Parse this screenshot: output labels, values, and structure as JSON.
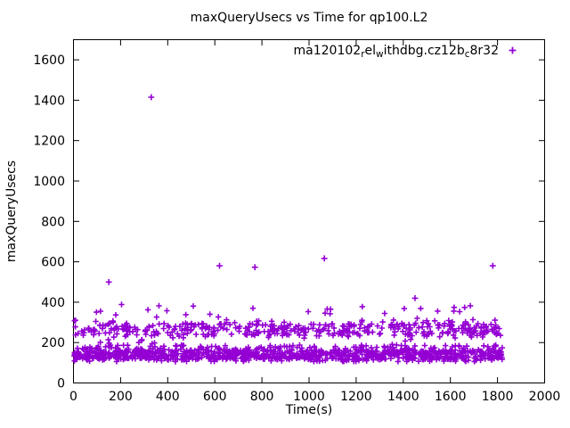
{
  "window": {
    "title": "maxQueryUsecs vs Time for qp100.L2"
  },
  "chart_data": {
    "type": "scatter",
    "title": "maxQueryUsecs vs Time for qp100.L2",
    "xlabel": "Time(s)",
    "ylabel": "maxQueryUsecs",
    "xlim": [
      0,
      2000
    ],
    "ylim": [
      0,
      1700
    ],
    "x_ticks": [
      0,
      200,
      400,
      600,
      800,
      1000,
      1200,
      1400,
      1600,
      1800,
      2000
    ],
    "y_ticks": [
      0,
      200,
      400,
      600,
      800,
      1000,
      1200,
      1400,
      1600
    ],
    "grid": false,
    "legend_position": "top-right-inside",
    "marker": "plus",
    "marker_color": "#9400d3",
    "frame_color": "#000000",
    "series_name": "ma120102_rel_withdbg.cz12b_8r32",
    "legend_segments": [
      {
        "text": "ma120102",
        "sub": false
      },
      {
        "text": "r",
        "sub": true
      },
      {
        "text": "el",
        "sub": false
      },
      {
        "text": "w",
        "sub": true
      },
      {
        "text": "ithdbg.cz12b",
        "sub": false
      },
      {
        "text": "c",
        "sub": true
      },
      {
        "text": "8r32",
        "sub": false
      }
    ],
    "time_extent": [
      0,
      1850
    ],
    "description": "Two dense horizontal bands of samples: a very dense band around 110-185 usec and a second band around 220-310 usec, sparse points 190-390 usec, plus isolated high outliers.",
    "point_bands": [
      {
        "name": "lower-band-core",
        "count": 640,
        "t_range": [
          2,
          1820
        ],
        "y_range": [
          116,
          163
        ]
      },
      {
        "name": "lower-band-spread",
        "count": 400,
        "t_range": [
          2,
          1822
        ],
        "y_range": [
          106,
          188
        ]
      },
      {
        "name": "upper-band-core",
        "count": 300,
        "t_range": [
          4,
          1815
        ],
        "y_range": [
          233,
          296
        ]
      },
      {
        "name": "upper-band-spread",
        "count": 110,
        "t_range": [
          4,
          1815
        ],
        "y_range": [
          222,
          312
        ]
      },
      {
        "name": "mid-scatter",
        "count": 32,
        "t_range": [
          15,
          1800
        ],
        "y_range": [
          300,
          390
        ]
      },
      {
        "name": "gap-scatter",
        "count": 14,
        "t_range": [
          15,
          1800
        ],
        "y_range": [
          190,
          228
        ]
      }
    ],
    "outliers": [
      [
        150,
        500
      ],
      [
        330,
        1415
      ],
      [
        620,
        580
      ],
      [
        770,
        573
      ],
      [
        1065,
        617
      ],
      [
        1450,
        420
      ],
      [
        1780,
        580
      ]
    ],
    "random_seed": 20427
  }
}
